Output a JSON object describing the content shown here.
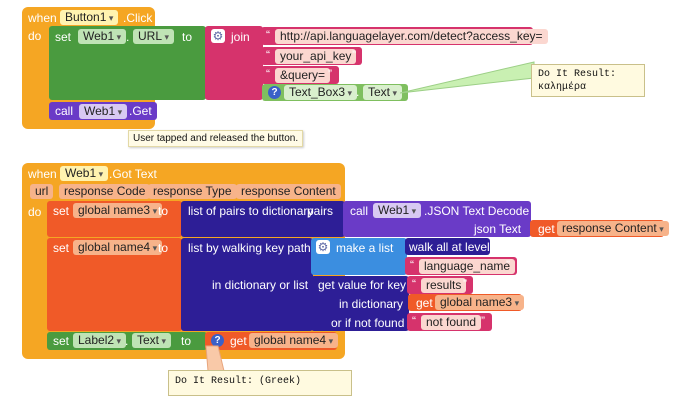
{
  "colors": {
    "event": "#f5a623",
    "component": "#4a9b3f",
    "text": "#d6336c",
    "list": "#3b8ee0",
    "dict": "#2d1e96",
    "variable": "#f05a28",
    "procedure": "#6a3bc7",
    "comment": "#fffae0"
  },
  "block1": {
    "when": "when",
    "component": "Button1",
    "event": ".Click",
    "do": "do",
    "set": "set",
    "set_component": "Web1",
    "set_property": "URL",
    "to": "to",
    "join": "join",
    "strings": [
      "http://api.languagelayer.com/detect?access_key=",
      "your_api_key",
      "&query="
    ],
    "textbox_component": "Text_Box3",
    "textbox_property": "Text",
    "call": "call",
    "call_component": "Web1",
    "call_method": ".Get",
    "comment": "Do It Result:\nκαλημέρα",
    "tooltip": "User tapped and released the button.",
    "gear_icon": "gear-icon",
    "help_icon": "question-icon"
  },
  "block2": {
    "when": "when",
    "component": "Web1",
    "event": ".Got Text",
    "params": [
      "url",
      "response Code",
      "response Type",
      "response Content"
    ],
    "do": "do",
    "set1": "set",
    "set1_var": "global name3",
    "to1": "to",
    "pairs_to_dict": "list of pairs to dictionary",
    "pairs": "pairs",
    "call": "call",
    "call_component": "Web1",
    "call_method": ".JSON Text Decode",
    "json_text": "json Text",
    "get1": "get",
    "get1_var": "response Content",
    "set2": "set",
    "set2_var": "global name4",
    "to2": "to",
    "walk_path": "list by walking key path",
    "make_list": "make a list",
    "walk_all": "walk all at level",
    "language_name": "language_name",
    "in_dict_or_list": "in dictionary or list",
    "get_value_for_key": "get value for key",
    "results": "results",
    "in_dictionary": "in dictionary",
    "get2": "get",
    "get2_var": "global name3",
    "or_if_not_found": "or if not found",
    "not_found": "not found",
    "set3": "set",
    "set3_component": "Label2",
    "set3_property": "Text",
    "to3": "to",
    "get3": "get",
    "get3_var": "global name4",
    "comment": "Do It Result: (Greek)",
    "gear_icon": "gear-icon",
    "help_icon": "question-icon"
  }
}
